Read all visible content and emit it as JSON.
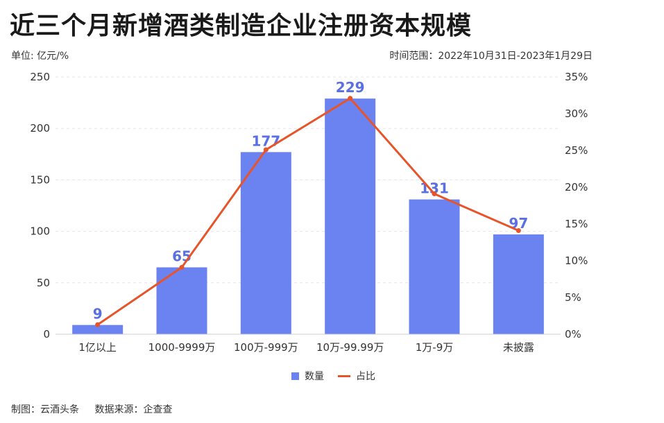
{
  "title": "近三个月新增酒类制造企业注册资本规模",
  "unit_label": "单位: 亿元/%",
  "time_range": "时间范围：2022年10月31日-2023年1月29日",
  "footer": {
    "maker": "制图：云酒头条",
    "source": "数据来源：企查查"
  },
  "legend": {
    "bar": "数量",
    "line": "占比"
  },
  "colors": {
    "bar": "#6b83f0",
    "line": "#e8542a",
    "label": "#5a6fe0"
  },
  "chart_data": {
    "type": "bar",
    "categories": [
      "1亿以上",
      "1000-9999万",
      "100万-999万",
      "10万-99.99万",
      "1万-9万",
      "未披露"
    ],
    "series": [
      {
        "name": "数量",
        "type": "bar",
        "axis": "left",
        "values": [
          9,
          65,
          177,
          229,
          131,
          97
        ]
      },
      {
        "name": "占比",
        "type": "line",
        "axis": "right",
        "values": [
          1.3,
          9.1,
          25.1,
          32.1,
          19.1,
          14.1
        ]
      }
    ],
    "ylim": [
      0,
      250
    ],
    "yticks": [
      "0",
      "50",
      "100",
      "150",
      "200",
      "250"
    ],
    "y2lim": [
      0,
      35
    ],
    "y2ticks": [
      "0%",
      "5%",
      "10%",
      "15%",
      "20%",
      "25%",
      "30%",
      "35%"
    ],
    "grid": true,
    "legend_position": "bottom-center"
  }
}
